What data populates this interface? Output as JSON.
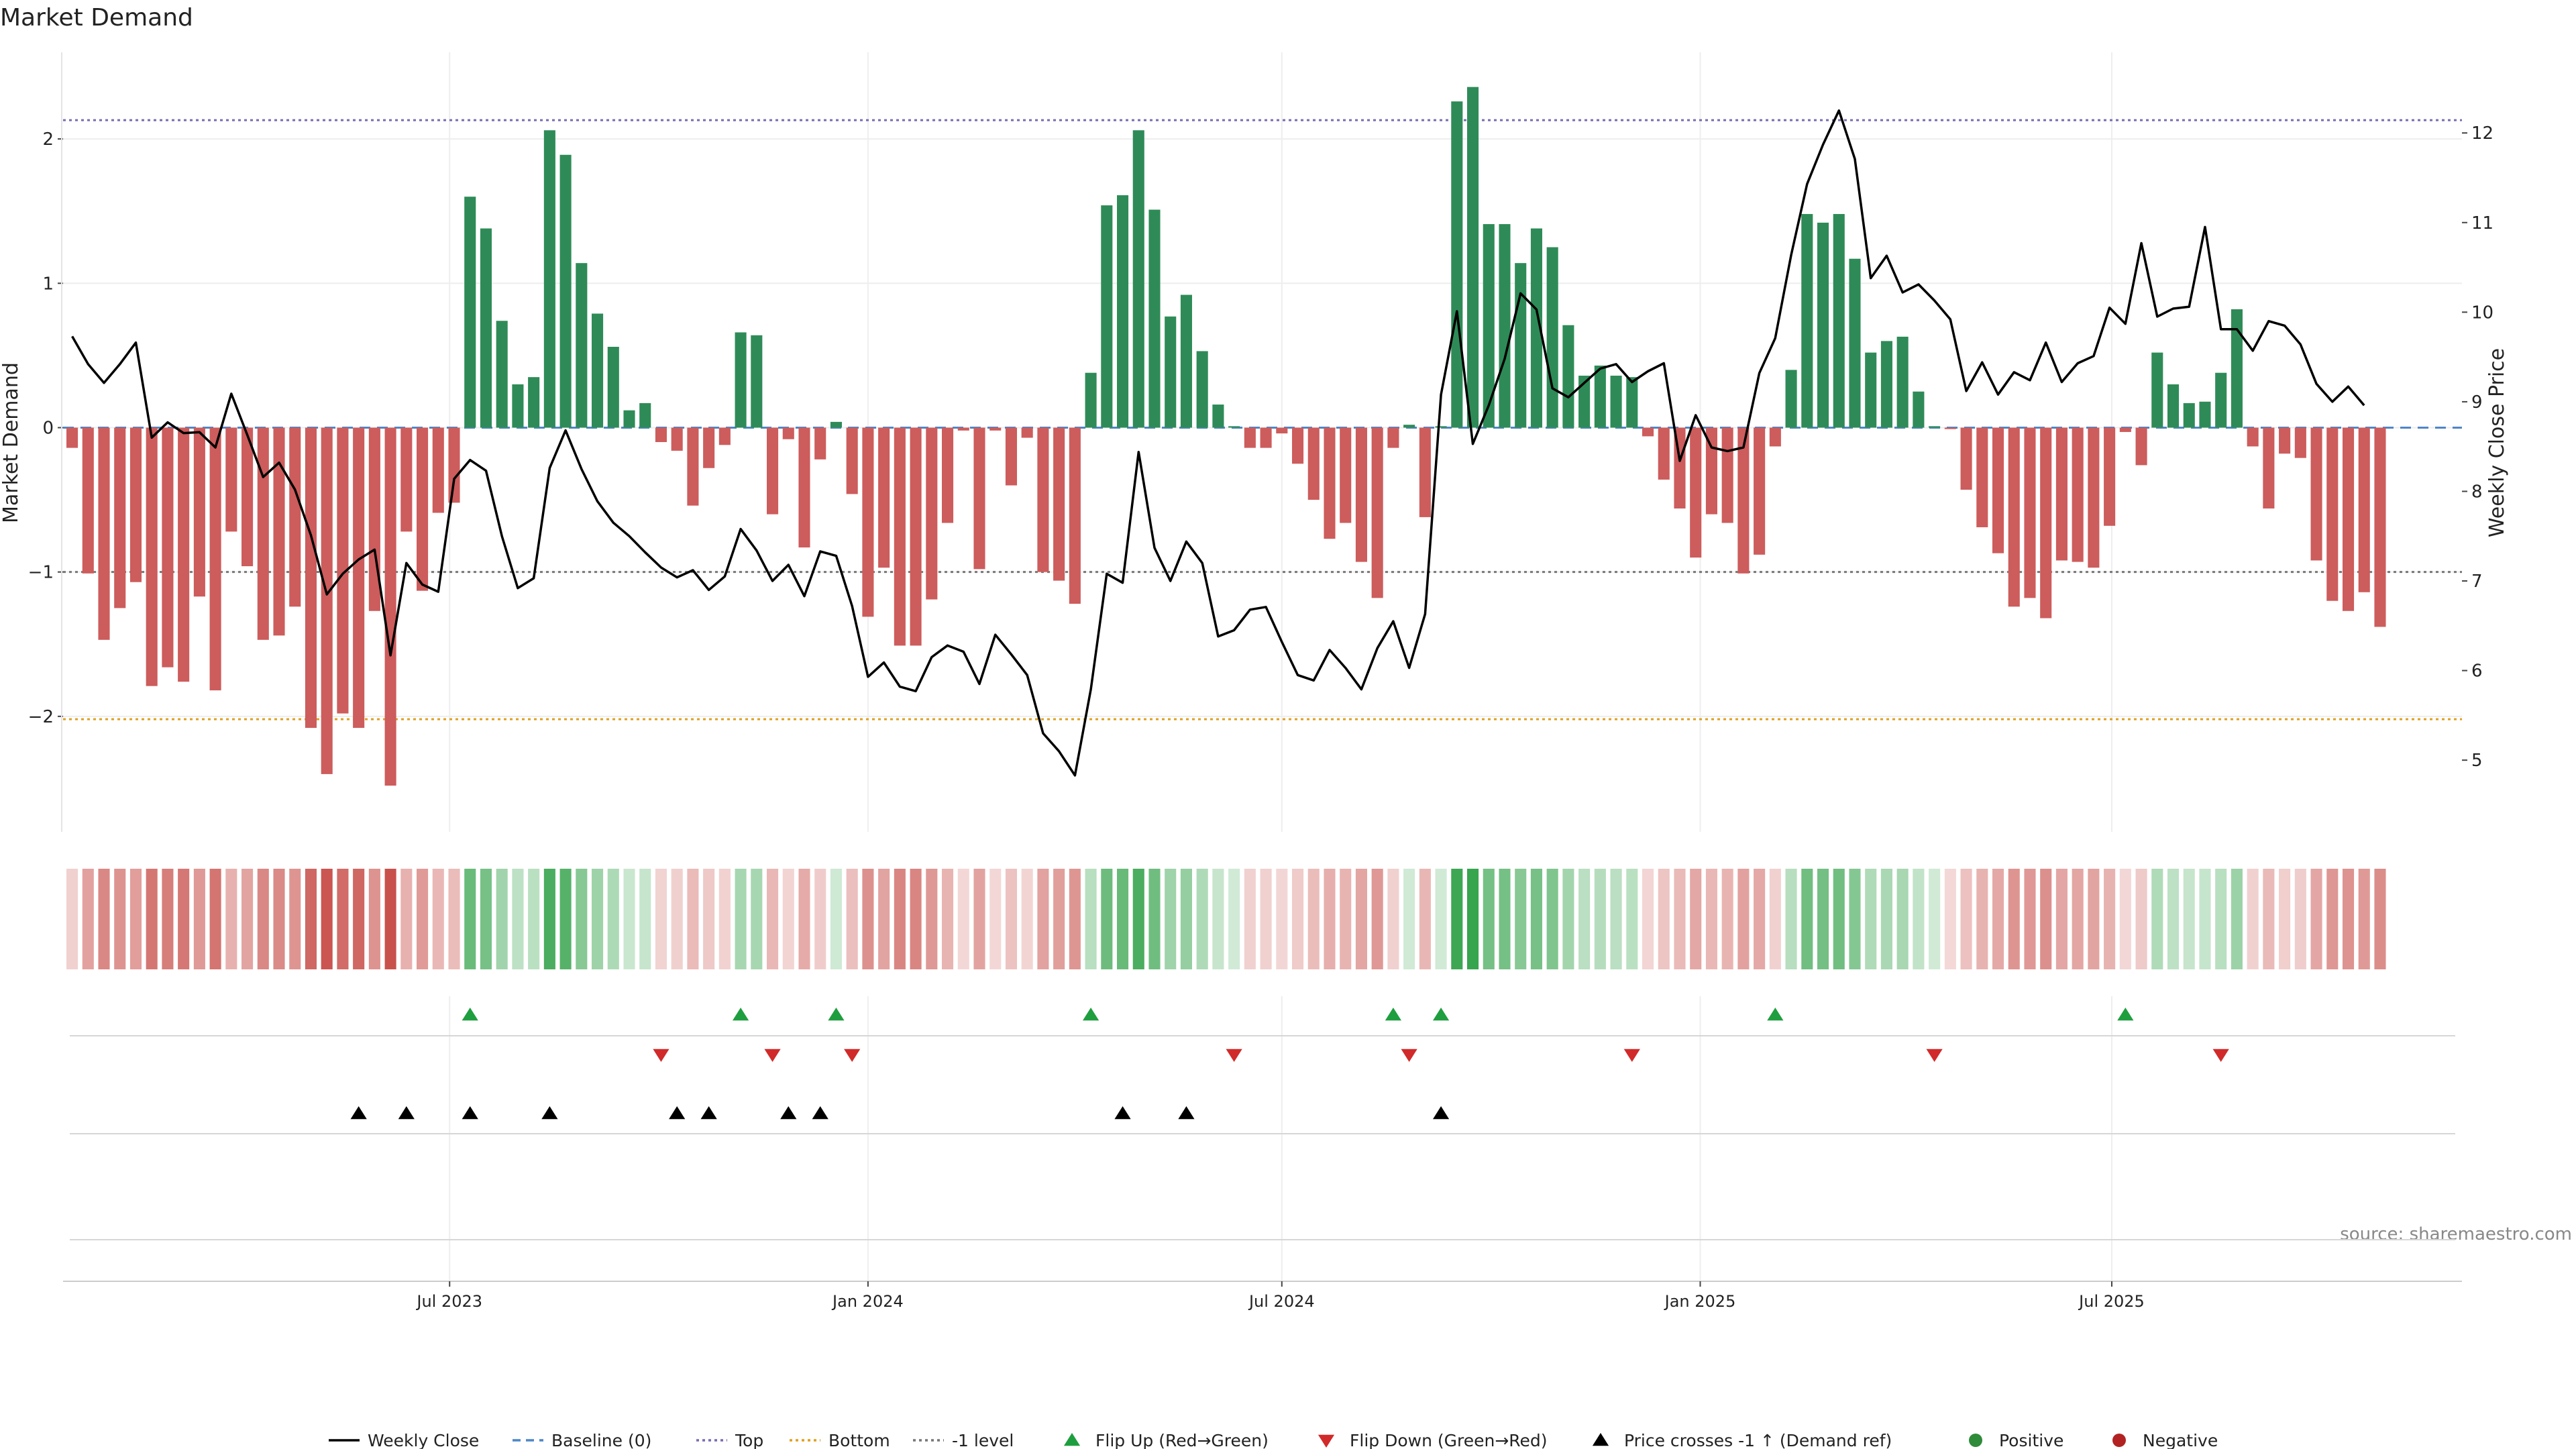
{
  "title": "Market Demand",
  "source": "source: sharemaestro.com",
  "chart_data": {
    "type": "bar",
    "title": "Market Demand",
    "ylabel_left": "Market Demand",
    "ylabel_right": "Weekly Close Price",
    "ylim_left": [
      -2.8,
      2.6
    ],
    "ylim_right": [
      4.2,
      12.9
    ],
    "yticks_left": [
      -2,
      -1,
      0,
      1,
      2
    ],
    "yticks_right": [
      5,
      6,
      7,
      8,
      9,
      10,
      11,
      12
    ],
    "yticks_left_labels": [
      "−2",
      "−1",
      "0",
      "1",
      "2"
    ],
    "yticks_right_labels": [
      "5",
      "6",
      "7",
      "8",
      "9",
      "10",
      "11",
      "12"
    ],
    "reference_lines": {
      "top": 2.13,
      "bottom": -2.02,
      "minus_one": -1.0,
      "baseline": 0
    },
    "start_date": "2023-01-16",
    "xlim": [
      "2023-01-12",
      "2025-12-02"
    ],
    "xticks": [
      {
        "label": "Jul 2023",
        "date": "2023-07-01"
      },
      {
        "label": "Jan 2024",
        "date": "2024-01-01"
      },
      {
        "label": "Jul 2024",
        "date": "2024-07-01"
      },
      {
        "label": "Jan 2025",
        "date": "2025-01-01"
      },
      {
        "label": "Jul 2025",
        "date": "2025-07-01"
      }
    ],
    "series": [
      {
        "name": "Market Demand",
        "values": [
          -0.14,
          -1.01,
          -1.47,
          -1.25,
          -1.07,
          -1.79,
          -1.66,
          -1.76,
          -1.17,
          -1.82,
          -0.72,
          -0.96,
          -1.47,
          -1.44,
          -1.24,
          -2.08,
          -2.4,
          -1.98,
          -2.08,
          -1.27,
          -2.48,
          -0.72,
          -1.13,
          -0.59,
          -0.52,
          1.6,
          1.38,
          0.74,
          0.3,
          0.35,
          2.06,
          1.89,
          1.14,
          0.79,
          0.56,
          0.12,
          0.17,
          -0.1,
          -0.16,
          -0.54,
          -0.28,
          -0.12,
          0.66,
          0.64,
          -0.6,
          -0.08,
          -0.83,
          -0.22,
          0.04,
          -0.46,
          -1.31,
          -0.97,
          -1.51,
          -1.51,
          -1.19,
          -0.66,
          -0.02,
          -0.98,
          -0.02,
          -0.4,
          -0.07,
          -1.0,
          -1.06,
          -1.22,
          0.38,
          1.54,
          1.61,
          2.06,
          1.51,
          0.77,
          0.92,
          0.53,
          0.16,
          0.01,
          -0.14,
          -0.14,
          -0.04,
          -0.25,
          -0.5,
          -0.77,
          -0.66,
          -0.93,
          -1.18,
          -0.14,
          0.02,
          -0.62,
          0.01,
          2.26,
          2.36,
          1.41,
          1.41,
          1.14,
          1.38,
          1.25,
          0.71,
          0.36,
          0.43,
          0.36,
          0.35,
          -0.06,
          -0.36,
          -0.56,
          -0.9,
          -0.6,
          -0.66,
          -1.01,
          -0.88,
          -0.13,
          0.4,
          1.48,
          1.42,
          1.48,
          1.17,
          0.52,
          0.6,
          0.63,
          0.25,
          0.01,
          -0.01,
          -0.43,
          -0.69,
          -0.87,
          -1.24,
          -1.18,
          -1.32,
          -0.92,
          -0.93,
          -0.97,
          -0.68,
          -0.03,
          -0.26,
          0.52,
          0.3,
          0.17,
          0.18,
          0.38,
          0.82,
          -0.13,
          -0.56,
          -0.18,
          -0.21,
          -0.92,
          -1.2,
          -1.27,
          -1.14,
          -1.38
        ]
      },
      {
        "name": "Weekly Close",
        "values": [
          9.73,
          9.42,
          9.21,
          9.42,
          9.66,
          8.6,
          8.77,
          8.65,
          8.66,
          8.49,
          9.09,
          8.63,
          8.16,
          8.32,
          8.02,
          7.51,
          6.85,
          7.08,
          7.24,
          7.35,
          6.17,
          7.2,
          6.96,
          6.88,
          8.14,
          8.35,
          8.23,
          7.5,
          6.92,
          7.03,
          8.26,
          8.68,
          8.25,
          7.89,
          7.65,
          7.5,
          7.32,
          7.15,
          7.04,
          7.12,
          6.9,
          7.05,
          7.58,
          7.34,
          7.0,
          7.18,
          6.83,
          7.33,
          7.28,
          6.72,
          5.93,
          6.09,
          5.82,
          5.77,
          6.15,
          6.28,
          6.21,
          5.85,
          6.4,
          6.18,
          5.95,
          5.3,
          5.1,
          4.83,
          5.79,
          7.08,
          6.98,
          8.44,
          7.37,
          7.0,
          7.44,
          7.2,
          6.38,
          6.45,
          6.68,
          6.71,
          6.32,
          5.95,
          5.89,
          6.23,
          6.03,
          5.79,
          6.25,
          6.55,
          6.03,
          6.63,
          9.08,
          10.01,
          8.53,
          8.96,
          9.48,
          10.21,
          10.03,
          9.15,
          9.05,
          9.21,
          9.37,
          9.42,
          9.22,
          9.34,
          9.43,
          8.34,
          8.85,
          8.49,
          8.45,
          8.49,
          9.32,
          9.71,
          10.64,
          11.43,
          11.87,
          12.25,
          11.71,
          10.38,
          10.63,
          10.22,
          10.31,
          10.13,
          9.92,
          9.12,
          9.44,
          9.08,
          9.33,
          9.24,
          9.66,
          9.22,
          9.43,
          9.51,
          10.05,
          9.87,
          10.77,
          9.95,
          10.04,
          10.06,
          10.95,
          9.81,
          9.81,
          9.57,
          9.9,
          9.85,
          9.64,
          9.2,
          9.0,
          9.17,
          8.96
        ]
      }
    ],
    "signal_rows": [
      {
        "name": "Flip Up (Red→Green)",
        "marker": "triangle-up",
        "color": "#1f9e3f",
        "indices": [
          25,
          42,
          48,
          64,
          83,
          86,
          107,
          129
        ]
      },
      {
        "name": "Flip Down (Green→Red)",
        "marker": "triangle-down",
        "color": "#d12a2a",
        "indices": [
          37,
          44,
          49,
          73,
          84,
          98,
          117,
          135
        ]
      },
      {
        "name": "Price crosses -1 ↑ (Demand ref)",
        "marker": "triangle-up",
        "color": "#000000",
        "indices": [
          18,
          21,
          25,
          30,
          38,
          40,
          45,
          47,
          66,
          70,
          86
        ]
      }
    ],
    "legend_position": "bottom-center",
    "legend": [
      {
        "label": "Weekly Close",
        "kind": "line",
        "color": "#000000"
      },
      {
        "label": "Baseline (0)",
        "kind": "dashed",
        "color": "#4f86c6"
      },
      {
        "label": "Top",
        "kind": "dotted",
        "color": "#7b6bb0"
      },
      {
        "label": "Bottom",
        "kind": "dotted",
        "color": "#e0a020"
      },
      {
        "label": "-1 level",
        "kind": "dotted",
        "color": "#777777"
      },
      {
        "label": "Flip Up (Red→Green)",
        "kind": "triangle-up",
        "color": "#1f9e3f"
      },
      {
        "label": "Flip Down (Green→Red)",
        "kind": "triangle-down",
        "color": "#d12a2a"
      },
      {
        "label": "Price crosses -1 ↑ (Demand ref)",
        "kind": "triangle-up",
        "color": "#000000"
      },
      {
        "label": "Positive",
        "kind": "dot",
        "color": "#2e8b3a"
      },
      {
        "label": "Negative",
        "kind": "dot",
        "color": "#b22222"
      }
    ],
    "colors": {
      "positive": "#2e8b57",
      "negative": "#cd5c5c",
      "close": "#000000",
      "grid": "#eeeeee"
    }
  }
}
